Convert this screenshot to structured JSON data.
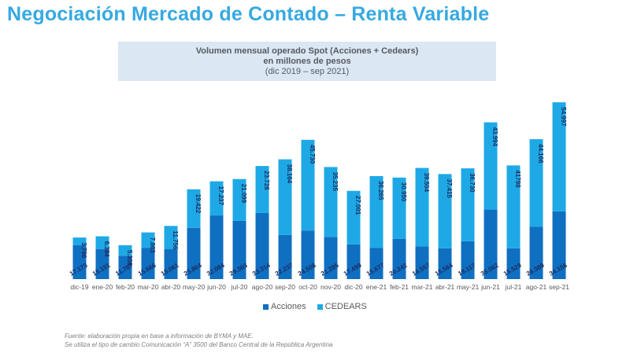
{
  "page": {
    "title": "Negociación Mercado de Contado – Renta Variable"
  },
  "subtitle": {
    "line1": "Volumen mensual operado Spot (Acciones + Cedears)",
    "line2": "en millones de pesos",
    "line3": "(dic 2019 – sep 2021)"
  },
  "legend": {
    "acciones": "Acciones",
    "cedears": "CEDEARS"
  },
  "footnote": {
    "line1": "Fuente: elaboración propia en base a información de BYMA y MAE.",
    "line2": "Se utiliza el tipo de cambio Comunicación “A” 3500 del Banco Central de la República Argentina"
  },
  "colors": {
    "acciones": "#0f6fc1",
    "cedears": "#1ea9e6",
    "label_text": "#1a2b5e",
    "title": "#36a9e1"
  },
  "chart_data": {
    "type": "bar",
    "stacked": true,
    "title": "Volumen mensual operado Spot (Acciones + Cedears) en millones de pesos (dic 2019 – sep 2021)",
    "xlabel": "",
    "ylabel": "",
    "grid": false,
    "legend_position": "bottom",
    "categories": [
      "dic-19",
      "ene-20",
      "feb-20",
      "mar-20",
      "abr-20",
      "may-20",
      "jun-20",
      "jul-20",
      "ago-20",
      "sep-20",
      "oct-20",
      "nov-20",
      "dic-20",
      "ene-21",
      "feb-21",
      "mar-21",
      "abr-21",
      "may-21",
      "jun-21",
      "jul-21",
      "ago-21",
      "sep-21"
    ],
    "series": [
      {
        "name": "Acciones",
        "values": [
          17173,
          15191,
          11787,
          15666,
          15061,
          25864,
          32084,
          29363,
          33314,
          22237,
          24508,
          21285,
          17499,
          15677,
          20242,
          16557,
          15564,
          19117,
          35062,
          15529,
          26389,
          34158
        ],
        "labels": [
          "17.173",
          "15.191",
          "11.787",
          "15.666",
          "15.061",
          "25.864",
          "32.084",
          "29.363",
          "33.314",
          "22.237",
          "24.508",
          "21.285",
          "17.499",
          "15.677",
          "20.242",
          "16.557",
          "15.564",
          "19.117",
          "35.062",
          "15.529",
          "26.389",
          "34.158"
        ]
      },
      {
        "name": "CEDEARS",
        "values": [
          3786,
          6384,
          5308,
          7863,
          11756,
          19422,
          17237,
          21099,
          23728,
          38164,
          45730,
          35235,
          27001,
          36265,
          30950,
          39504,
          37415,
          36730,
          43994,
          41798,
          44166,
          54997
        ],
        "labels": [
          "3.786",
          "6.384",
          "5.308",
          "7.863",
          "11.756",
          "19.422",
          "17.237",
          "21.099",
          "23.728",
          "38.164",
          "45.730",
          "35.235",
          "27.001",
          "36.265",
          "30.950",
          "39.504",
          "37.415",
          "36.730",
          "43.994",
          "41798",
          "44.166",
          "54.997"
        ]
      }
    ],
    "ylim": [
      0,
      90000
    ]
  }
}
